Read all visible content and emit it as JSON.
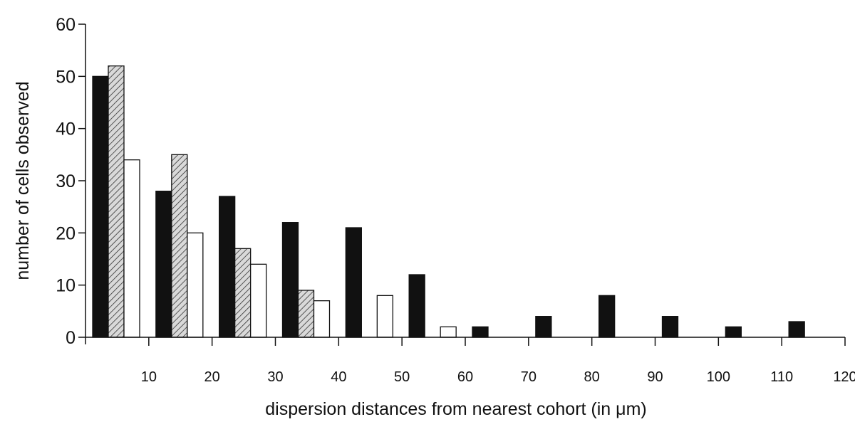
{
  "chart_data": {
    "type": "bar",
    "xlabel": "dispersion distances from nearest cohort (in μm)",
    "ylabel": "number of cells observed",
    "xlim": [
      0,
      120
    ],
    "ylim": [
      0,
      60
    ],
    "xticks": [
      10,
      20,
      30,
      40,
      50,
      60,
      70,
      80,
      90,
      100,
      110,
      120
    ],
    "yticks": [
      0,
      10,
      20,
      30,
      40,
      50,
      60
    ],
    "grid": false,
    "categories": [
      "0-10",
      "10-20",
      "20-30",
      "30-40",
      "40-50",
      "50-60",
      "60-70",
      "70-80",
      "80-90",
      "90-100",
      "100-110",
      "110-120"
    ],
    "series": [
      {
        "fill": "solid",
        "color": "#111111",
        "values": [
          50,
          28,
          27,
          22,
          21,
          12,
          2,
          4,
          8,
          4,
          2,
          3
        ]
      },
      {
        "fill": "hatched",
        "color": "#bdbdbd",
        "values": [
          52,
          35,
          17,
          9,
          0,
          0,
          0,
          0,
          0,
          0,
          0,
          0
        ]
      },
      {
        "fill": "open",
        "color": "#ffffff",
        "values": [
          34,
          20,
          14,
          7,
          8,
          2,
          0,
          0,
          0,
          0,
          0,
          0
        ]
      }
    ]
  }
}
